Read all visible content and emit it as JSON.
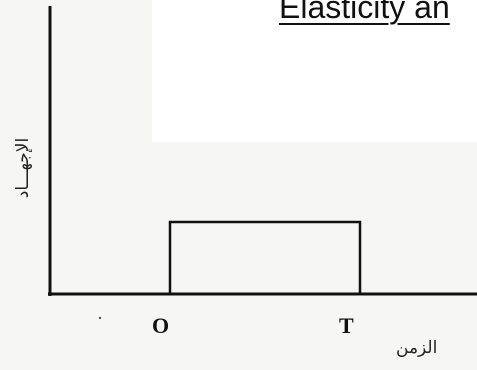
{
  "title": "Elasticity an",
  "diagram": {
    "y_axis_label": "الإجهـــاد",
    "x_axis_label": "الزمن",
    "origin_tick": "O",
    "end_tick": "T",
    "colors": {
      "line": "#111111",
      "background": "#f6f6f4",
      "panel": "#ffffff"
    }
  }
}
